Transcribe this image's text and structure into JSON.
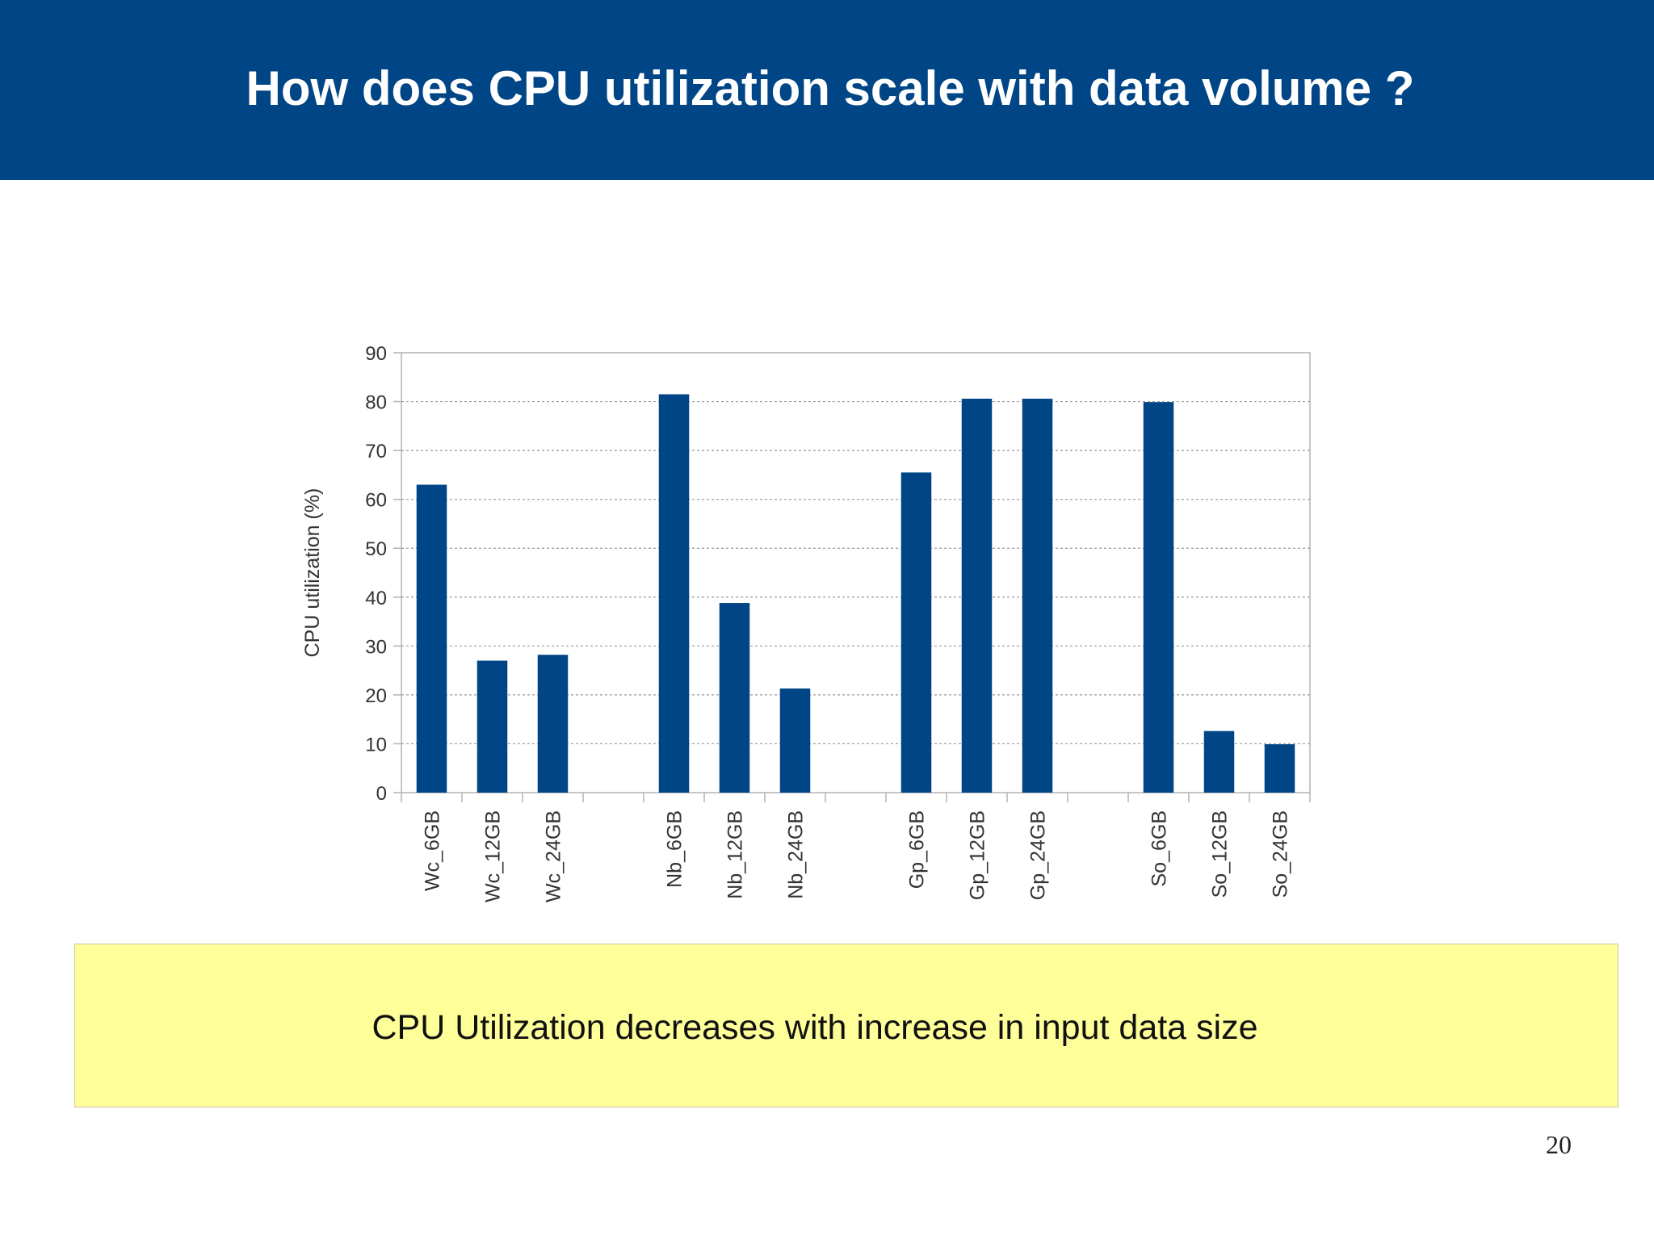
{
  "slide": {
    "title": "How does CPU utilization scale with data volume ?",
    "callout": "CPU Utilization decreases with increase in input data size",
    "page_number": "20"
  },
  "colors": {
    "header_bg": "#004586",
    "bar": "#004586",
    "callout_bg": "#ffff99"
  },
  "chart_data": {
    "type": "bar",
    "title": "",
    "xlabel": "",
    "ylabel": "CPU utilization (%)",
    "ylim": [
      0,
      90
    ],
    "yticks": [
      0,
      10,
      20,
      30,
      40,
      50,
      60,
      70,
      80,
      90
    ],
    "grid": true,
    "categories": [
      "Wc_6GB",
      "Wc_12GB",
      "Wc_24GB",
      "",
      "Nb_6GB",
      "Nb_12GB",
      "Nb_24GB",
      "",
      "Gp_6GB",
      "Gp_12GB",
      "Gp_24GB",
      "",
      "So_6GB",
      "So_12GB",
      "So_24GB"
    ],
    "values": [
      63,
      27,
      28.2,
      null,
      81.5,
      38.8,
      21.3,
      null,
      65.5,
      80.6,
      80.6,
      null,
      79.9,
      12.6,
      9.9
    ]
  }
}
